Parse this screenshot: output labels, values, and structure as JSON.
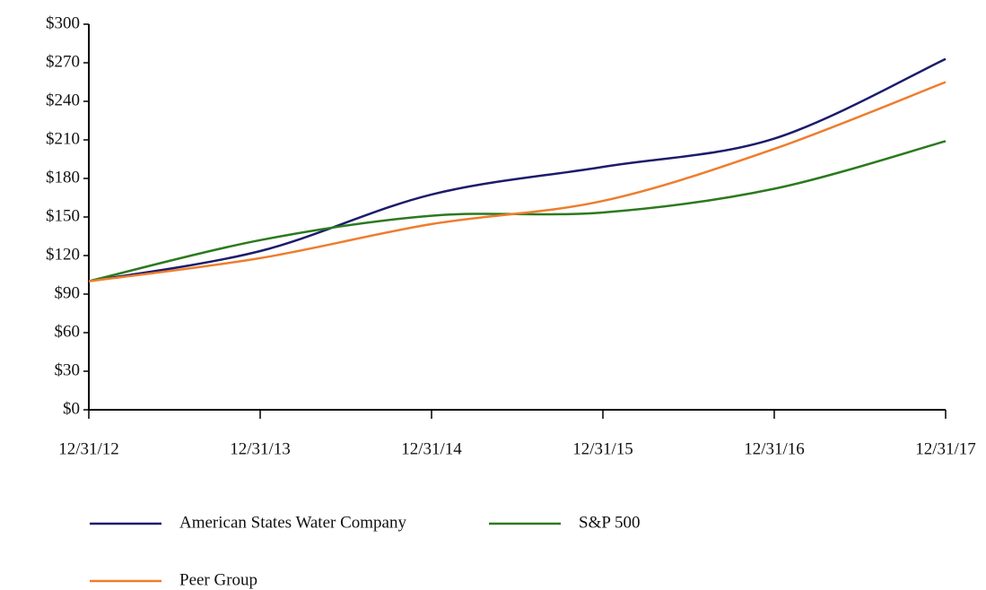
{
  "chart_data": {
    "type": "line",
    "categories": [
      "12/31/12",
      "12/31/13",
      "12/31/14",
      "12/31/15",
      "12/31/16",
      "12/31/17"
    ],
    "series": [
      {
        "name": "American States Water Company",
        "color": "#1c1c6b",
        "values": [
          100,
          123.5,
          167.5,
          189,
          211,
          273
        ]
      },
      {
        "name": "S&P 500",
        "color": "#2b7a1e",
        "values": [
          100,
          132,
          151,
          153.5,
          172,
          209
        ]
      },
      {
        "name": "Peer Group",
        "color": "#ee7d2e",
        "values": [
          100,
          118,
          144.5,
          162.5,
          203,
          255
        ]
      }
    ],
    "ylim": [
      0,
      300
    ],
    "yticks": [
      {
        "value": 0,
        "label": "$0"
      },
      {
        "value": 30,
        "label": "$30"
      },
      {
        "value": 60,
        "label": "$60"
      },
      {
        "value": 90,
        "label": "$90"
      },
      {
        "value": 120,
        "label": "$120"
      },
      {
        "value": 150,
        "label": "$150"
      },
      {
        "value": 180,
        "label": "$180"
      },
      {
        "value": 210,
        "label": "$210"
      },
      {
        "value": 240,
        "label": "$240"
      },
      {
        "value": 270,
        "label": "$270"
      },
      {
        "value": 300,
        "label": "$300"
      }
    ],
    "grid": false
  }
}
